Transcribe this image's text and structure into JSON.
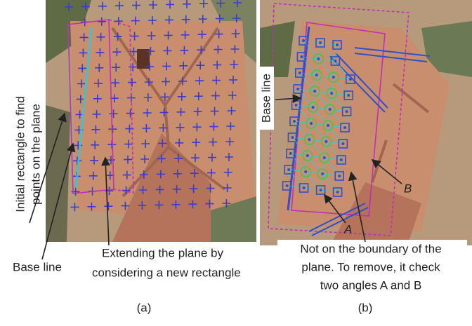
{
  "panel_a": {
    "vertical_label_lines": [
      "Initial rectangle to find",
      "points on the plane"
    ],
    "base_line_label": "Base line",
    "extend_label_lines": [
      "Extending the plane by",
      "considering a new rectangle"
    ],
    "caption": "(a)"
  },
  "panel_b": {
    "base_line_label": "Base line",
    "angle_b": "B",
    "angle_a": "A",
    "annotation_lines": [
      "Not on the boundary of the",
      "plane. To remove, it check",
      "two angles A and B"
    ],
    "caption": "(b)"
  }
}
